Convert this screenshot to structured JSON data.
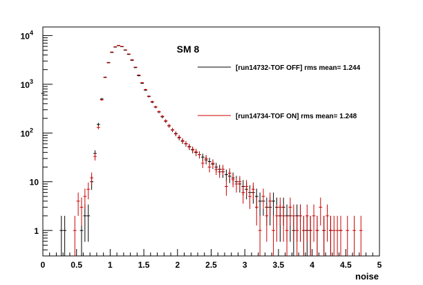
{
  "chart_data": {
    "type": "scatter",
    "title": "SM 8",
    "xlabel": "noise",
    "ylabel": "",
    "x_range": [
      0,
      5
    ],
    "y_range": [
      0.3,
      15000
    ],
    "y_scale": "log",
    "x_ticks": [
      "0",
      "0.5",
      "1",
      "1.5",
      "2",
      "2.5",
      "3",
      "3.5",
      "4",
      "4.5",
      "5"
    ],
    "y_ticks": [
      {
        "value": 1,
        "label": "1"
      },
      {
        "value": 10,
        "label": "10"
      },
      {
        "value": 100,
        "label": "10",
        "exp": "2"
      },
      {
        "value": 1000,
        "label": "10",
        "exp": "3"
      },
      {
        "value": 10000,
        "label": "10",
        "exp": "4"
      }
    ],
    "grid": false,
    "legend_position": "top-right",
    "series": [
      {
        "name": "[run14732-TOF OFF] rms mean= 1.244",
        "color": "#000000",
        "points": [
          [
            0.0,
            650
          ],
          [
            0.275,
            1
          ],
          [
            0.325,
            1
          ],
          [
            0.575,
            1
          ],
          [
            0.625,
            2
          ],
          [
            0.675,
            2
          ],
          [
            0.725,
            10
          ],
          [
            0.775,
            38
          ],
          [
            0.825,
            150
          ],
          [
            0.875,
            500
          ],
          [
            0.925,
            1400
          ],
          [
            0.975,
            2800
          ],
          [
            1.025,
            4500
          ],
          [
            1.075,
            5800
          ],
          [
            1.125,
            6200
          ],
          [
            1.175,
            5900
          ],
          [
            1.225,
            5000
          ],
          [
            1.275,
            4100
          ],
          [
            1.325,
            3100
          ],
          [
            1.375,
            2200
          ],
          [
            1.425,
            1500
          ],
          [
            1.475,
            1050
          ],
          [
            1.525,
            760
          ],
          [
            1.575,
            560
          ],
          [
            1.625,
            430
          ],
          [
            1.675,
            340
          ],
          [
            1.725,
            270
          ],
          [
            1.775,
            215
          ],
          [
            1.825,
            175
          ],
          [
            1.875,
            140
          ],
          [
            1.925,
            115
          ],
          [
            1.975,
            96
          ],
          [
            2.025,
            80
          ],
          [
            2.075,
            68
          ],
          [
            2.125,
            60
          ],
          [
            2.175,
            52
          ],
          [
            2.225,
            45
          ],
          [
            2.275,
            40
          ],
          [
            2.325,
            36
          ],
          [
            2.375,
            32
          ],
          [
            2.425,
            28
          ],
          [
            2.475,
            26
          ],
          [
            2.525,
            23
          ],
          [
            2.575,
            20
          ],
          [
            2.625,
            18
          ],
          [
            2.675,
            16
          ],
          [
            2.725,
            14
          ],
          [
            2.775,
            13
          ],
          [
            2.825,
            12
          ],
          [
            2.875,
            10
          ],
          [
            2.925,
            9
          ],
          [
            2.975,
            8
          ],
          [
            3.025,
            7
          ],
          [
            3.075,
            6
          ],
          [
            3.125,
            6
          ],
          [
            3.175,
            5
          ],
          [
            3.225,
            4
          ],
          [
            3.275,
            4
          ],
          [
            3.325,
            3
          ],
          [
            3.375,
            3
          ],
          [
            3.425,
            4
          ],
          [
            3.475,
            3
          ],
          [
            3.525,
            2
          ],
          [
            3.575,
            3
          ],
          [
            3.625,
            2
          ],
          [
            3.675,
            2
          ],
          [
            3.725,
            1
          ],
          [
            3.775,
            2
          ],
          [
            3.825,
            2
          ],
          [
            3.875,
            1
          ],
          [
            3.925,
            1
          ],
          [
            3.975,
            1
          ],
          [
            4.075,
            1
          ],
          [
            4.175,
            1
          ],
          [
            4.275,
            1
          ],
          [
            4.425,
            1
          ]
        ]
      },
      {
        "name": "[run14734-TOF  ON] rms mean= 1.248",
        "color": "#cc0000",
        "points": [
          [
            0.475,
            1
          ],
          [
            0.525,
            4
          ],
          [
            0.575,
            3
          ],
          [
            0.625,
            5
          ],
          [
            0.675,
            7
          ],
          [
            0.725,
            12
          ],
          [
            0.775,
            33
          ],
          [
            0.825,
            130
          ],
          [
            0.875,
            480
          ],
          [
            0.925,
            1380
          ],
          [
            0.975,
            2750
          ],
          [
            1.025,
            4600
          ],
          [
            1.075,
            5900
          ],
          [
            1.125,
            6300
          ],
          [
            1.175,
            6000
          ],
          [
            1.225,
            5100
          ],
          [
            1.275,
            4200
          ],
          [
            1.325,
            3200
          ],
          [
            1.375,
            2250
          ],
          [
            1.425,
            1550
          ],
          [
            1.475,
            1080
          ],
          [
            1.525,
            780
          ],
          [
            1.575,
            570
          ],
          [
            1.625,
            440
          ],
          [
            1.675,
            345
          ],
          [
            1.725,
            275
          ],
          [
            1.775,
            220
          ],
          [
            1.825,
            178
          ],
          [
            1.875,
            142
          ],
          [
            1.925,
            117
          ],
          [
            1.975,
            98
          ],
          [
            2.025,
            82
          ],
          [
            2.075,
            70
          ],
          [
            2.125,
            61
          ],
          [
            2.175,
            53
          ],
          [
            2.225,
            46
          ],
          [
            2.275,
            41
          ],
          [
            2.325,
            36
          ],
          [
            2.375,
            24
          ],
          [
            2.425,
            30
          ],
          [
            2.475,
            20
          ],
          [
            2.525,
            24
          ],
          [
            2.575,
            18
          ],
          [
            2.625,
            16
          ],
          [
            2.675,
            18
          ],
          [
            2.725,
            8
          ],
          [
            2.775,
            15
          ],
          [
            2.825,
            11
          ],
          [
            2.875,
            9
          ],
          [
            2.925,
            10
          ],
          [
            2.975,
            6
          ],
          [
            3.025,
            8
          ],
          [
            3.075,
            5
          ],
          [
            3.125,
            7
          ],
          [
            3.175,
            3
          ],
          [
            3.225,
            1
          ],
          [
            3.275,
            5
          ],
          [
            3.325,
            2
          ],
          [
            3.375,
            4
          ],
          [
            3.425,
            1
          ],
          [
            3.475,
            2
          ],
          [
            3.525,
            3
          ],
          [
            3.575,
            2
          ],
          [
            3.625,
            1
          ],
          [
            3.675,
            3
          ],
          [
            3.725,
            2
          ],
          [
            3.775,
            1
          ],
          [
            3.825,
            2
          ],
          [
            3.875,
            1
          ],
          [
            3.925,
            2
          ],
          [
            3.975,
            1
          ],
          [
            4.025,
            2
          ],
          [
            4.075,
            1
          ],
          [
            4.125,
            3
          ],
          [
            4.175,
            1
          ],
          [
            4.225,
            2
          ],
          [
            4.275,
            1
          ],
          [
            4.325,
            1
          ],
          [
            4.375,
            1
          ],
          [
            4.425,
            1
          ],
          [
            4.525,
            1
          ],
          [
            4.625,
            1
          ],
          [
            4.725,
            1
          ]
        ]
      }
    ]
  }
}
